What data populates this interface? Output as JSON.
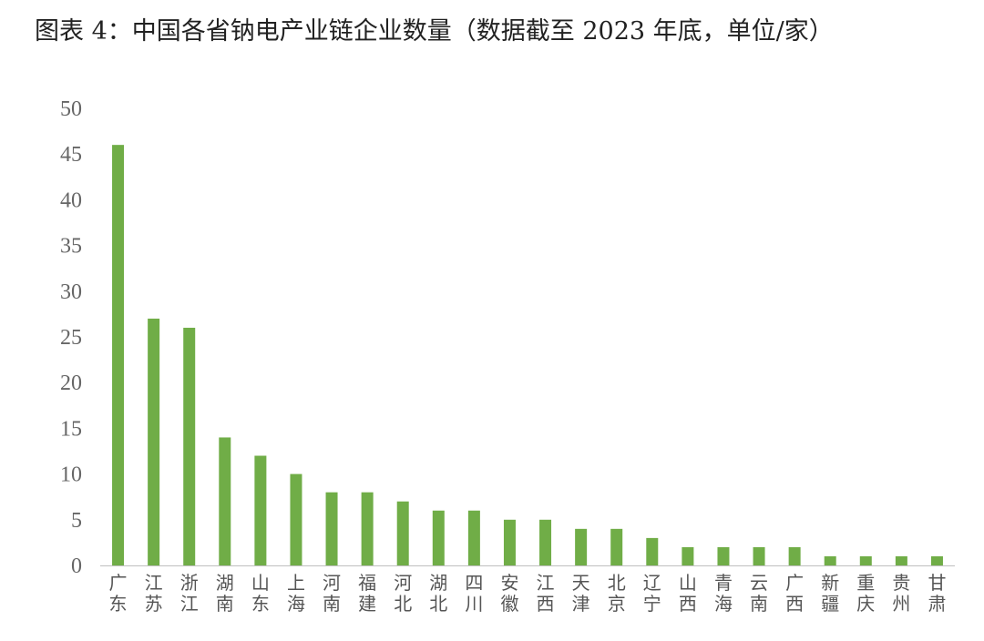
{
  "title": "图表 4：中国各省钠电产业链企业数量（数据截至 2023 年底，单位/家）",
  "colors": {
    "bar": "#70ad47",
    "axis": "#bfbfbf",
    "tick_text": "#666666"
  },
  "chart_data": {
    "type": "bar",
    "title": "图表 4：中国各省钠电产业链企业数量（数据截至 2023 年底，单位/家）",
    "xlabel": "",
    "ylabel": "",
    "ylim": [
      0,
      50
    ],
    "yticks": [
      0,
      5,
      10,
      15,
      20,
      25,
      30,
      35,
      40,
      45,
      50
    ],
    "grid": false,
    "legend": "none",
    "categories": [
      "广东",
      "江苏",
      "浙江",
      "湖南",
      "山东",
      "上海",
      "河南",
      "福建",
      "河北",
      "湖北",
      "四川",
      "安徽",
      "江西",
      "天津",
      "北京",
      "辽宁",
      "山西",
      "青海",
      "云南",
      "广西",
      "新疆",
      "重庆",
      "贵州",
      "甘肃"
    ],
    "values": [
      46,
      27,
      26,
      14,
      12,
      10,
      8,
      8,
      7,
      6,
      6,
      5,
      5,
      4,
      4,
      3,
      2,
      2,
      2,
      2,
      1,
      1,
      1,
      1
    ]
  }
}
